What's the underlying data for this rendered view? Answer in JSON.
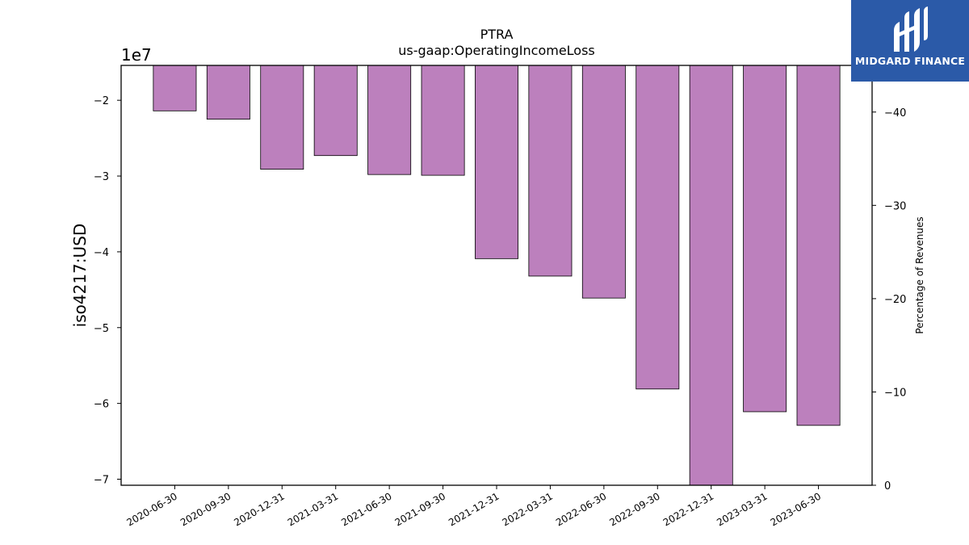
{
  "logo": {
    "text": "MIDGARD FINANCE",
    "icon": "midgard-logo-icon",
    "color": "#2b5aa8"
  },
  "chart_data": {
    "type": "bar",
    "title": "PTRA",
    "subtitle": "us-gaap:OperatingIncomeLoss",
    "ylabel": "iso4217:USD",
    "y_offset_label": "1e7",
    "y2label": "Percentage of Revenues",
    "categories": [
      "2020-06-30",
      "2020-09-30",
      "2020-12-31",
      "2021-03-31",
      "2021-06-30",
      "2021-09-30",
      "2021-12-31",
      "2022-03-31",
      "2022-06-30",
      "2022-09-30",
      "2022-12-31",
      "2023-03-31",
      "2023-06-30"
    ],
    "values": [
      -21400000,
      -22500000,
      -29100000,
      -27300000,
      -29800000,
      -29900000,
      -40900000,
      -43200000,
      -46100000,
      -58100000,
      -70800000,
      -61100000,
      -62900000
    ],
    "ylim": [
      -70800000,
      -15400000
    ],
    "yticks": [
      -20000000,
      -30000000,
      -40000000,
      -50000000,
      -60000000,
      -70000000
    ],
    "ytick_labels": [
      "−2",
      "−3",
      "−4",
      "−5",
      "−6",
      "−7"
    ],
    "y2lim": [
      0,
      -45
    ],
    "y2ticks": [
      -40,
      -30,
      -20,
      -10,
      0
    ],
    "y2tick_labels": [
      "−40",
      "−30",
      "−20",
      "−10",
      "0"
    ],
    "bar_color": "#bc80bd",
    "grid": false,
    "legend": "none"
  }
}
